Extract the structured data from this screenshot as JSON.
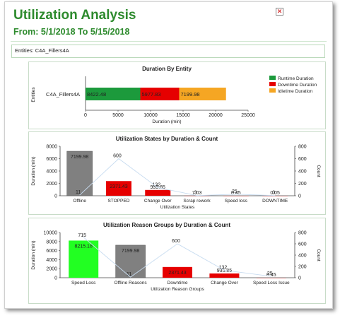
{
  "header": {
    "title": "Utilization Analysis",
    "date_range": "From: 5/1/2018 To 5/15/2018",
    "close_icon": "close-icon"
  },
  "entities_line": "Entities: C4A_Fillers4A",
  "colors": {
    "green": "#1c9a3c",
    "red": "#e60000",
    "orange": "#f5a623",
    "gray": "#808080",
    "bright_green": "#22ff22",
    "title_green": "#2e8b2e"
  },
  "chart_data": [
    {
      "type": "bar",
      "orientation": "horizontal",
      "stacked": true,
      "title": "Duration By Entity",
      "xlabel": "Duration (min)",
      "ylabel": "Entities",
      "categories": [
        "C4A_Fillers4A"
      ],
      "xlim": [
        0,
        25000
      ],
      "xticks": [
        "0",
        "5000",
        "10000",
        "15000",
        "20000",
        "25000"
      ],
      "series": [
        {
          "name": "Runtime Duration",
          "values": [
            8422.48
          ],
          "labels": [
            "8422.48"
          ],
          "color": "#1c9a3c"
        },
        {
          "name": "Downtime Duration",
          "values": [
            5977.83
          ],
          "labels": [
            "5977.83"
          ],
          "color": "#e60000"
        },
        {
          "name": "Idletime Duration",
          "values": [
            7199.98
          ],
          "labels": [
            "7199.98"
          ],
          "color": "#f5a623"
        }
      ],
      "legend": "right"
    },
    {
      "type": "bar",
      "title": "Utilization States by Duration & Count",
      "xlabel": "Utilization States",
      "ylabel": "Duration (min)",
      "y2label": "Count",
      "categories": [
        "Offline",
        "STOPPED",
        "Change Over",
        "Scrap rework",
        "Speed loss",
        "DOWNTIME"
      ],
      "ylim": [
        0,
        8000
      ],
      "y2lim": [
        0,
        800
      ],
      "yticks": [
        "0",
        "2000",
        "4000",
        "6000",
        "8000"
      ],
      "y2ticks": [
        "0",
        "200",
        "400",
        "600",
        "800"
      ],
      "durations": [
        7199.98,
        2371.43,
        935.85,
        7.03,
        0.45,
        0.05
      ],
      "duration_labels": [
        "7199.98",
        "2371.43",
        "935.85",
        "7.03",
        "0.45",
        "0.05"
      ],
      "counts": [
        11,
        600,
        132,
        3,
        25,
        3
      ],
      "count_labels": [
        "11",
        "600",
        "132",
        "3",
        "25",
        "3"
      ],
      "bar_colors": [
        "#808080",
        "#e60000",
        "#e60000",
        "#e60000",
        "#e60000",
        "#e60000"
      ]
    },
    {
      "type": "bar",
      "title": "Utilization Reason Groups by Duration & Count",
      "xlabel": "Utilization Reason Groups",
      "ylabel": "Duration (min)",
      "y2label": "Count",
      "categories": [
        "Speed Loss",
        "Offline Reasons",
        "Downtime",
        "Change Over",
        "Speed Loss Issue"
      ],
      "ylim": [
        0,
        10000
      ],
      "y2lim": [
        0,
        800
      ],
      "yticks": [
        "0",
        "2000",
        "4000",
        "6000",
        "8000",
        "10000"
      ],
      "y2ticks": [
        "0",
        "200",
        "400",
        "600",
        "800"
      ],
      "durations": [
        8215.18,
        7199.98,
        2371.43,
        935.85,
        0.45
      ],
      "duration_labels": [
        "8215.18",
        "7199.98",
        "2371.43",
        "935.85",
        "0.45"
      ],
      "counts": [
        715,
        11,
        600,
        132,
        25
      ],
      "count_labels": [
        "715",
        "11",
        "600",
        "132",
        "25"
      ],
      "bar_colors": [
        "#22ff22",
        "#808080",
        "#e60000",
        "#e60000",
        "#e60000"
      ]
    }
  ]
}
